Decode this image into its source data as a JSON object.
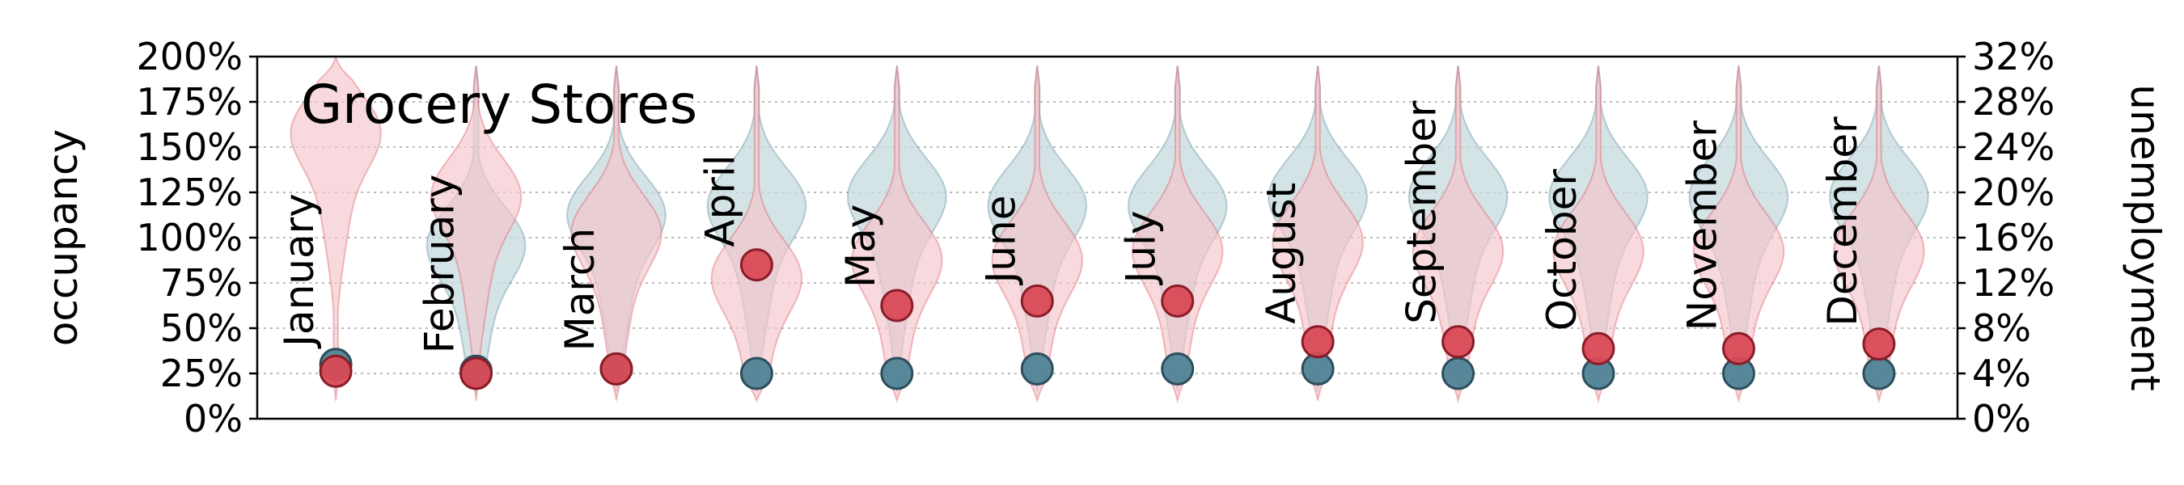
{
  "chart_data": {
    "type": "violin",
    "title": "Grocery Stores",
    "ylabel_left": "occupancy",
    "ylabel_right": "unemployment",
    "left_axis": {
      "ylim": [
        0,
        200
      ],
      "ticks": [
        0,
        25,
        50,
        75,
        100,
        125,
        150,
        175,
        200
      ],
      "tick_labels": [
        "0%",
        "25%",
        "50%",
        "75%",
        "100%",
        "125%",
        "150%",
        "175%",
        "200%"
      ]
    },
    "right_axis": {
      "ylim": [
        0,
        32
      ],
      "ticks": [
        0,
        4,
        8,
        12,
        16,
        20,
        24,
        28,
        32
      ],
      "tick_labels": [
        "0%",
        "4%",
        "8%",
        "12%",
        "16%",
        "20%",
        "24%",
        "28%",
        "32%"
      ]
    },
    "grid": "horizontal dotted",
    "categories": [
      "January",
      "February",
      "March",
      "April",
      "May",
      "June",
      "July",
      "August",
      "September",
      "October",
      "November",
      "December"
    ],
    "series": [
      {
        "color": "#4f8396",
        "fill": "#c5d9de",
        "unemployment_points": [
          4.8,
          4.2,
          4.4,
          4.0,
          4.0,
          4.4,
          4.4,
          4.4,
          4.0,
          4.0,
          4.0,
          4.0
        ]
      },
      {
        "color": "#d94a56",
        "fill": "#f5c4cb",
        "unemployment_points": [
          4.2,
          4.0,
          4.4,
          13.6,
          10.0,
          10.4,
          10.4,
          6.8,
          6.8,
          6.2,
          6.2,
          6.6
        ]
      }
    ],
    "violins": [
      {
        "blue": null,
        "red": {
          "min": 10,
          "max": 200,
          "peak": 160
        }
      },
      {
        "blue": {
          "min": 15,
          "max": 195,
          "peak": 98
        },
        "red": {
          "min": 10,
          "max": 195,
          "peak": 125
        }
      },
      {
        "blue": {
          "min": 15,
          "max": 195,
          "peak": 115
        },
        "red": {
          "min": 10,
          "max": 195,
          "peak": 105
        }
      },
      {
        "blue": {
          "min": 15,
          "max": 195,
          "peak": 120
        },
        "red": {
          "min": 10,
          "max": 195,
          "peak": 80
        }
      },
      {
        "blue": {
          "min": 15,
          "max": 195,
          "peak": 125
        },
        "red": {
          "min": 10,
          "max": 195,
          "peak": 90
        }
      },
      {
        "blue": {
          "min": 15,
          "max": 195,
          "peak": 120
        },
        "red": {
          "min": 10,
          "max": 195,
          "peak": 90
        }
      },
      {
        "blue": {
          "min": 15,
          "max": 195,
          "peak": 120
        },
        "red": {
          "min": 10,
          "max": 195,
          "peak": 95
        }
      },
      {
        "blue": {
          "min": 15,
          "max": 195,
          "peak": 125
        },
        "red": {
          "min": 10,
          "max": 195,
          "peak": 100
        }
      },
      {
        "blue": {
          "min": 15,
          "max": 195,
          "peak": 125
        },
        "red": {
          "min": 10,
          "max": 195,
          "peak": 95
        }
      },
      {
        "blue": {
          "min": 15,
          "max": 195,
          "peak": 125
        },
        "red": {
          "min": 10,
          "max": 195,
          "peak": 95
        }
      },
      {
        "blue": {
          "min": 15,
          "max": 195,
          "peak": 125
        },
        "red": {
          "min": 10,
          "max": 195,
          "peak": 95
        }
      },
      {
        "blue": {
          "min": 15,
          "max": 195,
          "peak": 125
        },
        "red": {
          "min": 10,
          "max": 195,
          "peak": 95
        }
      }
    ]
  }
}
